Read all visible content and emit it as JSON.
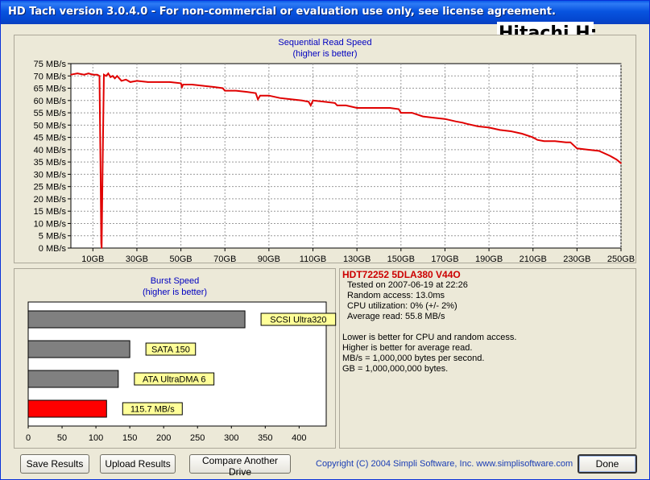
{
  "window": {
    "title": "HD Tach version 3.0.4.0  - For non-commercial or evaluation use only, see license agreement."
  },
  "drive_label": "Hitachi H:",
  "read_chart": {
    "title": "Sequential Read Speed",
    "subtitle": "(higher is better)"
  },
  "burst_chart": {
    "title": "Burst Speed",
    "subtitle": "(higher is better)"
  },
  "info": {
    "model": "HDT72252 5DLA380 V44O",
    "tested": "Tested on 2007-06-19 at 22:26",
    "random_access": "Random access: 13.0ms",
    "cpu": "CPU utilization: 0% (+/- 2%)",
    "average_read": "Average read: 55.8 MB/s",
    "note1": "Lower is better for CPU and random access.",
    "note2": "Higher is better for average read.",
    "note3": "MB/s = 1,000,000 bytes per second.",
    "note4": "GB = 1,000,000,000 bytes."
  },
  "buttons": {
    "save": "Save Results",
    "upload": "Upload Results",
    "compare": "Compare Another Drive",
    "done": "Done"
  },
  "copyright": "Copyright (C) 2004 Simpli Software, Inc. www.simplisoftware.com",
  "colors": {
    "series": "#e00000",
    "bars": "#808080",
    "highlight_bar": "#ff0000",
    "label_bg": "#ffff99",
    "title_blue": "#0000c0"
  },
  "chart_data": [
    {
      "type": "line",
      "title": "Sequential Read Speed",
      "subtitle": "(higher is better)",
      "xlabel": "",
      "ylabel": "",
      "x_ticks": [
        "10GB",
        "30GB",
        "50GB",
        "70GB",
        "90GB",
        "110GB",
        "130GB",
        "150GB",
        "170GB",
        "190GB",
        "210GB",
        "230GB",
        "250GB"
      ],
      "y_ticks": [
        "0 MB/s",
        "5 MB/s",
        "10 MB/s",
        "15 MB/s",
        "20 MB/s",
        "25 MB/s",
        "30 MB/s",
        "35 MB/s",
        "40 MB/s",
        "45 MB/s",
        "50 MB/s",
        "55 MB/s",
        "60 MB/s",
        "65 MB/s",
        "70 MB/s",
        "75 MB/s"
      ],
      "xlim": [
        0,
        250
      ],
      "ylim": [
        0,
        75
      ],
      "grid": true,
      "series": [
        {
          "x": [
            0,
            3,
            6,
            8,
            10,
            12,
            13,
            13.5,
            13.8,
            14,
            14.3,
            14.6,
            15,
            16,
            17,
            18,
            19,
            20,
            21,
            22,
            23,
            25,
            27,
            30,
            35,
            40,
            45,
            50,
            50.5,
            51,
            55,
            60,
            65,
            69,
            70,
            75,
            80,
            84,
            85,
            86,
            90,
            95,
            100,
            105,
            108,
            109,
            110,
            115,
            120,
            121,
            125,
            130,
            135,
            140,
            145,
            149,
            150,
            155,
            160,
            165,
            170,
            175,
            178,
            180,
            185,
            190,
            195,
            200,
            205,
            210,
            212,
            215,
            220,
            225,
            227,
            230,
            235,
            240,
            245,
            248,
            250
          ],
          "y": [
            70.5,
            71,
            70.5,
            71,
            70.5,
            70.5,
            70,
            30,
            2,
            0,
            25,
            45,
            70.5,
            70,
            71,
            69.5,
            70,
            69,
            70,
            69,
            68,
            68.5,
            67.5,
            68,
            67.5,
            67.5,
            67.5,
            67,
            65.5,
            66.5,
            66.5,
            66,
            65.5,
            65,
            64,
            64,
            63.5,
            63,
            60.5,
            62,
            62,
            61,
            60.5,
            60,
            59.5,
            58,
            60,
            59.5,
            59,
            58,
            58,
            57,
            57,
            57,
            57,
            56.5,
            55,
            55,
            53.5,
            53,
            52.5,
            51.5,
            51,
            50.5,
            49.5,
            49,
            48,
            47.5,
            46.5,
            45,
            44,
            43.5,
            43.5,
            43,
            43,
            40.5,
            40,
            39.5,
            37.5,
            36,
            34.5
          ]
        }
      ]
    },
    {
      "type": "bar",
      "title": "Burst Speed",
      "subtitle": "(higher is better)",
      "orientation": "horizontal",
      "categories": [
        "SCSI Ultra320",
        "SATA 150",
        "ATA UltraDMA 6",
        "115.7 MB/s"
      ],
      "values": [
        320,
        150,
        133,
        115.7
      ],
      "highlighted": [
        false,
        false,
        false,
        true
      ],
      "x_ticks": [
        "0",
        "50",
        "100",
        "150",
        "200",
        "250",
        "300",
        "350",
        "400"
      ],
      "xlim": [
        0,
        440
      ],
      "grid": false
    }
  ]
}
